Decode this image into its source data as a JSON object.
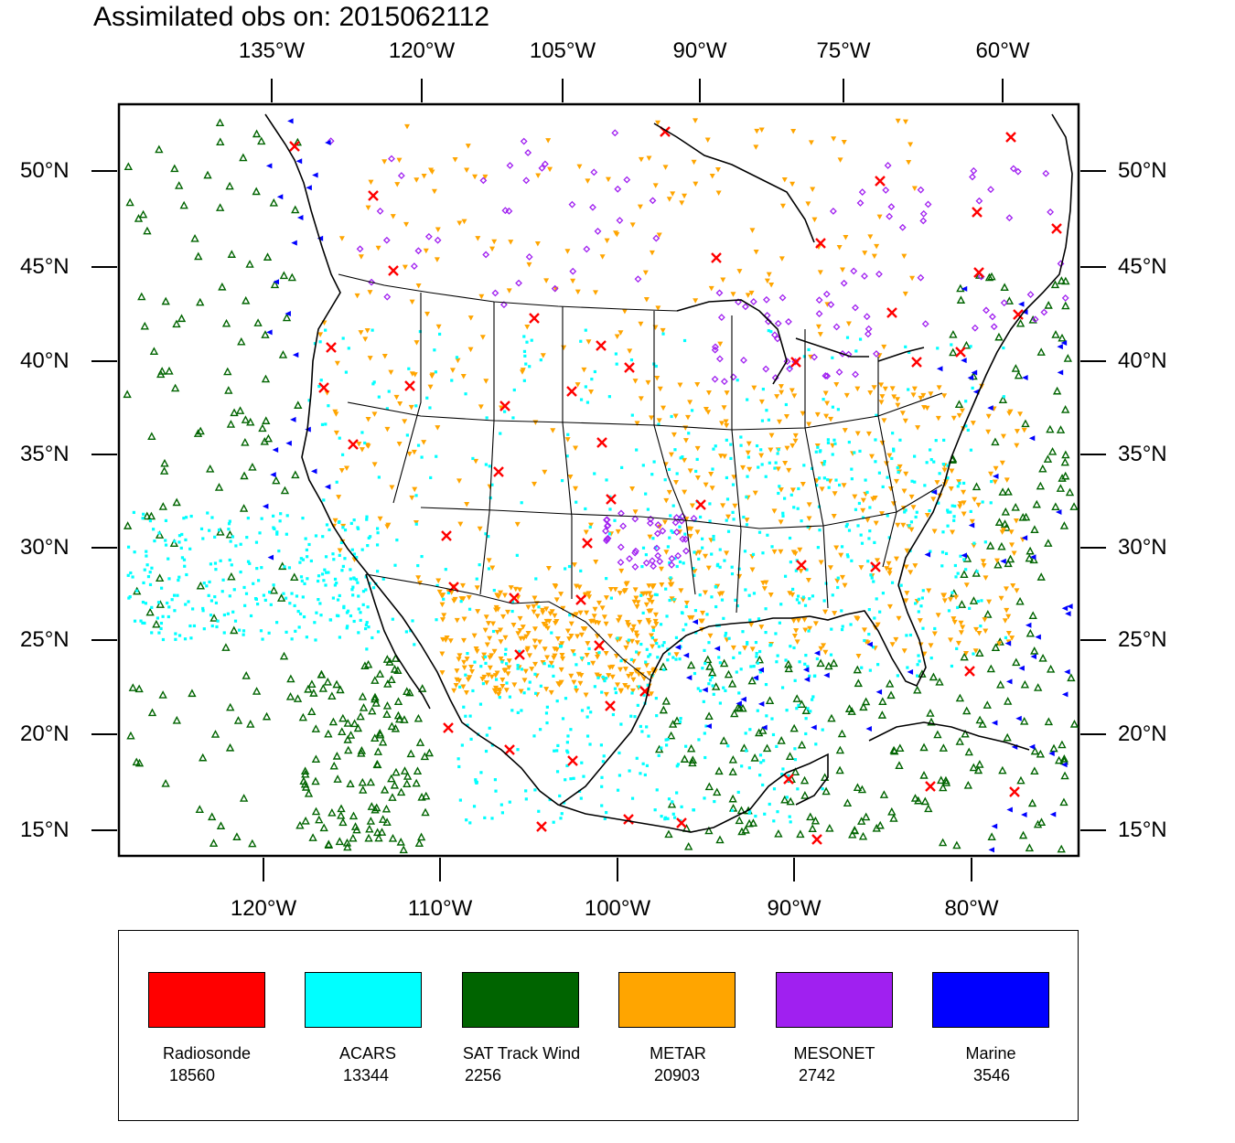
{
  "title": "Assimilated obs on: 2015062112",
  "top_axis_labels": [
    "135°W",
    "120°W",
    "105°W",
    "90°W",
    "75°W",
    "60°W"
  ],
  "bottom_axis_labels": [
    "120°W",
    "110°W",
    "100°W",
    "90°W",
    "80°W"
  ],
  "lat_labels": [
    "50°N",
    "45°N",
    "40°N",
    "35°N",
    "30°N",
    "25°N",
    "20°N",
    "15°N"
  ],
  "legend": [
    {
      "name": "Radiosonde",
      "count": "18560",
      "color": "#ff0000"
    },
    {
      "name": "ACARS",
      "count": "13344",
      "color": "#00ffff"
    },
    {
      "name": "SAT Track Wind",
      "count": "2256",
      "color": "#006400"
    },
    {
      "name": "METAR",
      "count": "20903",
      "color": "#ffa500"
    },
    {
      "name": "MESONET",
      "count": "2742",
      "color": "#a020f0"
    },
    {
      "name": "Marine",
      "count": "3546",
      "color": "#0000ff"
    }
  ],
  "colors": {
    "radiosonde": "#ff0000",
    "acars": "#00ffff",
    "sat": "#006400",
    "metar": "#ffa500",
    "mesonet": "#a020f0",
    "marine": "#0000ff"
  }
}
